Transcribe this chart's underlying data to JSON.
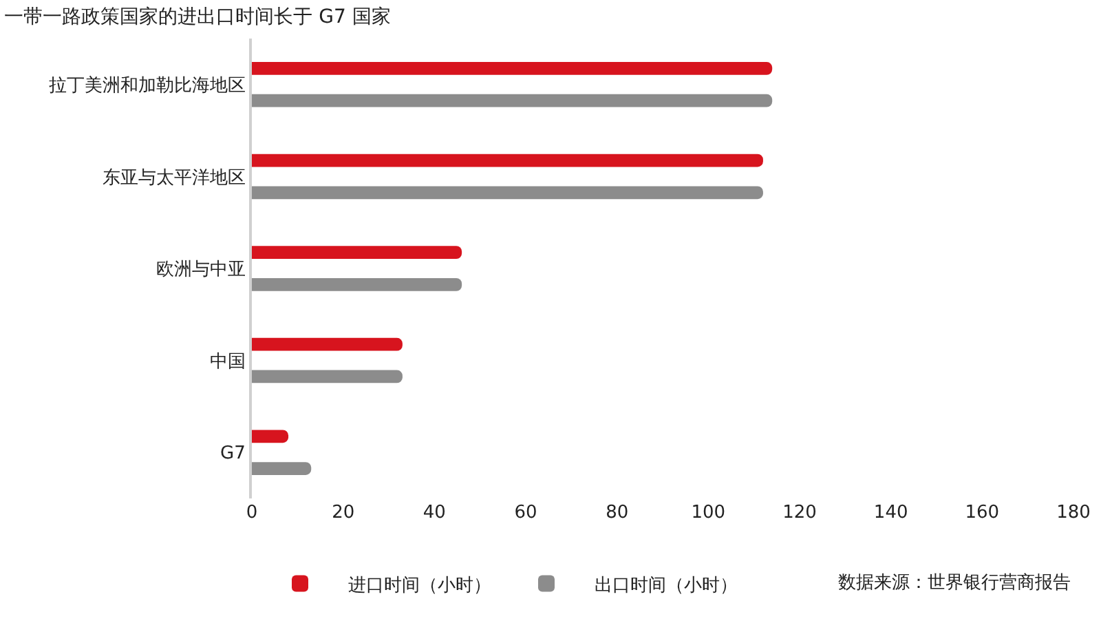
{
  "chart_data": {
    "type": "bar",
    "orientation": "horizontal",
    "title": "一带一路政策国家的进出口时间长于 G7 国家",
    "categories": [
      "拉丁美洲和加勒比海地区",
      "东亚与太平洋地区",
      "欧洲与中亚",
      "中国",
      "G7"
    ],
    "series": [
      {
        "name": "进口时间（小时）",
        "color": "#d7141e",
        "values": [
          114,
          112,
          46,
          33,
          8
        ]
      },
      {
        "name": "出口时间（小时）",
        "color": "#8c8c8c",
        "values": [
          114,
          112,
          46,
          33,
          13
        ]
      }
    ],
    "xlim": [
      0,
      180
    ],
    "xticks": [
      0,
      20,
      40,
      60,
      80,
      100,
      120,
      140,
      160,
      180
    ],
    "grid": false,
    "legend": "bottom",
    "annotations": [
      "数据来源：世界银行营商报告"
    ]
  }
}
